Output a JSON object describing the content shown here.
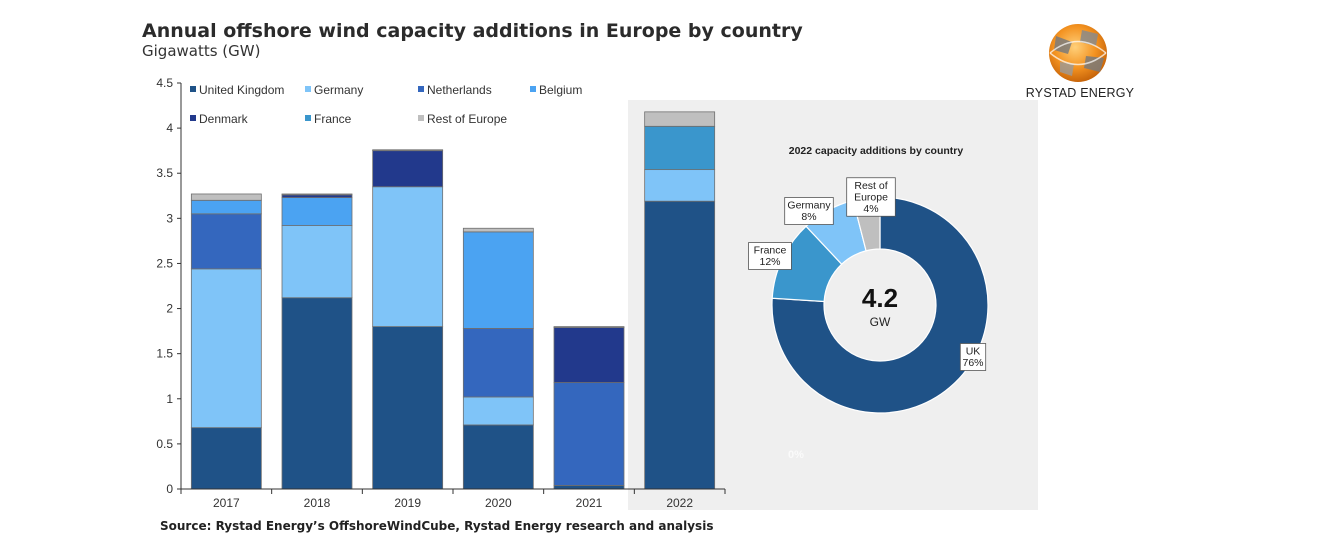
{
  "title": "Annual offshore wind capacity additions in Europe by country",
  "subtitle": "Gigawatts (GW)",
  "source": "Source: Rystad Energy’s OffshoreWindCube, Rystad Energy research and analysis",
  "logo": {
    "text": "RYSTAD ENERGY",
    "icon": "rystad-globe-logo"
  },
  "colors": {
    "United Kingdom": "#1f5287",
    "Germany": "#7fc4f8",
    "Netherlands": "#3467be",
    "Belgium": "#4ba3f2",
    "Denmark": "#22398c",
    "France": "#3a96cc",
    "Rest of Europe": "#bfbfbf",
    "panel": "#efefef"
  },
  "chart_data": [
    {
      "type": "bar",
      "stacked": true,
      "categories": [
        "2017",
        "2018",
        "2019",
        "2020",
        "2021",
        "2022"
      ],
      "ylim": [
        0,
        4.5
      ],
      "yticks": [
        "0",
        "0.5",
        "1",
        "1.5",
        "2",
        "2.5",
        "3",
        "3.5",
        "4",
        "4.5"
      ],
      "xlabel": "",
      "ylabel": "",
      "legend_position": "top-left",
      "series": [
        {
          "name": "United Kingdom",
          "values": [
            0.68,
            2.12,
            1.8,
            0.71,
            0.04,
            3.19
          ]
        },
        {
          "name": "Germany",
          "values": [
            1.76,
            0.8,
            1.55,
            0.31,
            0.0,
            0.35
          ]
        },
        {
          "name": "Netherlands",
          "values": [
            0.61,
            0.0,
            0.0,
            0.76,
            1.14,
            0.0
          ]
        },
        {
          "name": "Belgium",
          "values": [
            0.15,
            0.31,
            0.0,
            1.07,
            0.0,
            0.0
          ]
        },
        {
          "name": "Denmark",
          "values": [
            0.0,
            0.03,
            0.4,
            0.0,
            0.61,
            0.0
          ]
        },
        {
          "name": "France",
          "values": [
            0.0,
            0.0,
            0.0,
            0.0,
            0.0,
            0.48
          ]
        },
        {
          "name": "Rest of Europe",
          "values": [
            0.07,
            0.01,
            0.01,
            0.04,
            0.01,
            0.16
          ]
        }
      ]
    },
    {
      "type": "pie",
      "donut": true,
      "title": "2022 capacity additions by country",
      "center_value": "4.2",
      "center_unit": "GW",
      "slices": [
        {
          "label": "UK",
          "pct_text": "76%",
          "value": 76,
          "color_key": "United Kingdom"
        },
        {
          "label": "France",
          "pct_text": "12%",
          "value": 12,
          "color_key": "France"
        },
        {
          "label": "Germany",
          "pct_text": "8%",
          "value": 8,
          "color_key": "Germany"
        },
        {
          "label": "Rest of Europe",
          "pct_text": "4%",
          "value": 4,
          "color_key": "Rest of Europe"
        }
      ],
      "faint_label": "0%"
    }
  ]
}
